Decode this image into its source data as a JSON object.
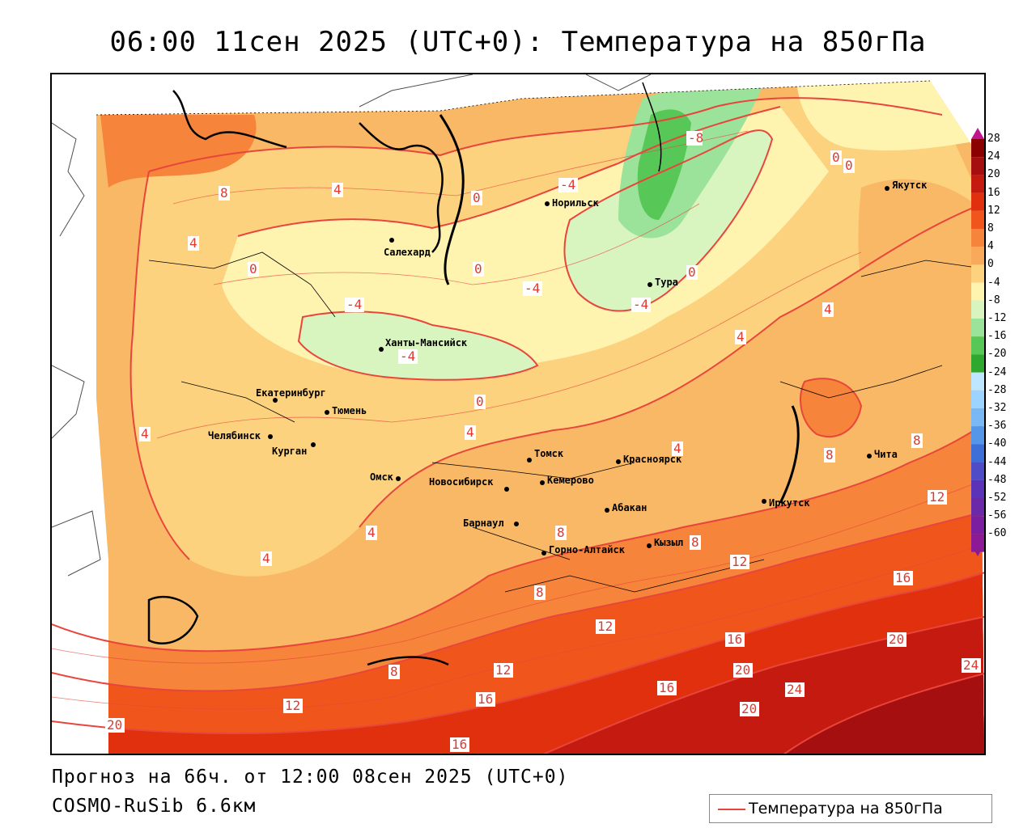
{
  "title": "06:00 11сен 2025 (UTC+0): Температура на 850гПа",
  "forecast_line": "Прогноз на 66ч. от 12:00 08сен 2025 (UTC+0)",
  "model_line": "COSMO-RuSib 6.6км",
  "legend": {
    "label": "Температура на 850гПа",
    "line_color": "#e8453c"
  },
  "scale": {
    "levels": [
      "28",
      "24",
      "20",
      "16",
      "12",
      "8",
      "4",
      "0",
      "-4",
      "-8",
      "-12",
      "-16",
      "-20",
      "-24",
      "-28",
      "-32",
      "-36",
      "-40",
      "-44",
      "-48",
      "-52",
      "-56",
      "-60"
    ],
    "colors": [
      "#8b0000",
      "#a50f0f",
      "#c41a10",
      "#e0300e",
      "#f0561c",
      "#f6843a",
      "#f9a95a",
      "#fcd27e",
      "#fff3b0",
      "#d8f5c0",
      "#9be29a",
      "#57c857",
      "#2ea82e",
      "#bfe6ff",
      "#9dd3ff",
      "#7ab8f5",
      "#5596e8",
      "#3e6fd8",
      "#4f4cc8",
      "#5b33b8",
      "#6a2aa8",
      "#7b1fa0",
      "#8c1a96"
    ]
  },
  "cities": [
    {
      "name": "Якутск"
    },
    {
      "name": "Норильск"
    },
    {
      "name": "Салехард"
    },
    {
      "name": "Тура"
    },
    {
      "name": "Ханты-Мансийск"
    },
    {
      "name": "Екатеринбург"
    },
    {
      "name": "Тюмень"
    },
    {
      "name": "Челябинск"
    },
    {
      "name": "Курган"
    },
    {
      "name": "Омск"
    },
    {
      "name": "Новосибирск"
    },
    {
      "name": "Томск"
    },
    {
      "name": "Кемерово"
    },
    {
      "name": "Красноярск"
    },
    {
      "name": "Барнаул"
    },
    {
      "name": "Абакан"
    },
    {
      "name": "Горно-Алтайск"
    },
    {
      "name": "Кызыл"
    },
    {
      "name": "Иркутск"
    },
    {
      "name": "Чита"
    }
  ],
  "contour_labels": [
    "-8",
    "0",
    "0",
    "-4",
    "0",
    "8",
    "4",
    "4",
    "0",
    "0",
    "-4",
    "-4",
    "-4",
    "-4",
    "0",
    "4",
    "4",
    "0",
    "4",
    "4",
    "4",
    "4",
    "8",
    "4",
    "8",
    "8",
    "8",
    "12",
    "8",
    "12",
    "16",
    "12",
    "16",
    "20",
    "8",
    "12",
    "16",
    "20",
    "24",
    "20",
    "12",
    "16",
    "24",
    "20",
    "16"
  ]
}
